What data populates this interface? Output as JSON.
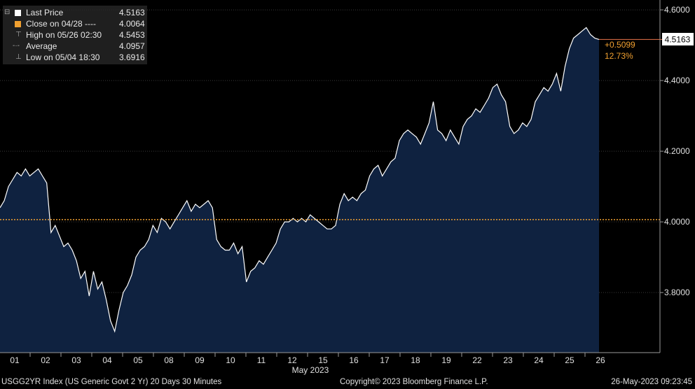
{
  "legend": {
    "items": [
      {
        "label": "Last Price",
        "value": "4.5163",
        "marker": "white-square"
      },
      {
        "label": "Close on 04/28 ----",
        "value": "4.0064",
        "marker": "orange-square"
      },
      {
        "label": "High on 05/26 02:30",
        "value": "4.5453",
        "marker": "high-tick"
      },
      {
        "label": "Average",
        "value": "4.0957",
        "marker": "average-line"
      },
      {
        "label": "Low on 05/04 18:30",
        "value": "3.6916",
        "marker": "low-tick"
      }
    ]
  },
  "change": {
    "abs": "+0.5099",
    "pct": "12.73%"
  },
  "last_label": "4.5163",
  "footer": {
    "left": "USGG2YR Index (US Generic Govt 2 Yr) 20 Days 30 Minutes",
    "center": "Copyright© 2023 Bloomberg Finance L.P.",
    "right": "26-May-2023 09:23:45"
  },
  "colors": {
    "line": "#ffffff",
    "area": "#0f2240",
    "reference": "#f0a030",
    "grid": "#3a3a3a"
  },
  "chart_data": {
    "type": "area",
    "ylim": [
      3.63,
      4.62
    ],
    "yticks": [
      3.8,
      4.0,
      4.2,
      4.4,
      4.6
    ],
    "ytick_labels": [
      "3.8000",
      "4.0000",
      "4.2000",
      "4.4000",
      "4.6000"
    ],
    "xtick_labels": [
      "01",
      "02",
      "03",
      "04",
      "05",
      "08",
      "09",
      "10",
      "11",
      "12",
      "15",
      "16",
      "17",
      "18",
      "19",
      "22",
      "23",
      "24",
      "25",
      "26"
    ],
    "month_label": "May 2023",
    "reference_value": 4.0064,
    "last_value": 4.5163,
    "series": [
      {
        "values": [
          4.04,
          4.06,
          4.1,
          4.12,
          4.14,
          4.13,
          4.15,
          4.13,
          4.14,
          4.15,
          4.13,
          4.11,
          3.97,
          3.99,
          3.96,
          3.93,
          3.94,
          3.92,
          3.89,
          3.84,
          3.86,
          3.79,
          3.86,
          3.81,
          3.83,
          3.78,
          3.72,
          3.69,
          3.75,
          3.8,
          3.82,
          3.85,
          3.9,
          3.92,
          3.93,
          3.95,
          3.99,
          3.97,
          4.01,
          4.0,
          3.98,
          4.0,
          4.02,
          4.04,
          4.06,
          4.03,
          4.05,
          4.04,
          4.05,
          4.06,
          4.04,
          3.95,
          3.93,
          3.92,
          3.92,
          3.94,
          3.91,
          3.93,
          3.83,
          3.86,
          3.87,
          3.89,
          3.88,
          3.9,
          3.92,
          3.94,
          3.98,
          4.0,
          4.0,
          4.01,
          4.0,
          4.01,
          4.0,
          4.02,
          4.01,
          4.0,
          3.99,
          3.98,
          3.98,
          3.99,
          4.05,
          4.08,
          4.06,
          4.07,
          4.06,
          4.08,
          4.09,
          4.13,
          4.15,
          4.16,
          4.13,
          4.15,
          4.17,
          4.18,
          4.23,
          4.25,
          4.26,
          4.25,
          4.24,
          4.22,
          4.25,
          4.28,
          4.34,
          4.26,
          4.25,
          4.23,
          4.26,
          4.24,
          4.22,
          4.27,
          4.29,
          4.3,
          4.32,
          4.31,
          4.33,
          4.35,
          4.38,
          4.39,
          4.36,
          4.34,
          4.27,
          4.25,
          4.26,
          4.28,
          4.27,
          4.29,
          4.34,
          4.36,
          4.38,
          4.37,
          4.39,
          4.42,
          4.37,
          4.44,
          4.49,
          4.52,
          4.53,
          4.54,
          4.55,
          4.53,
          4.52,
          4.5163
        ]
      }
    ]
  }
}
